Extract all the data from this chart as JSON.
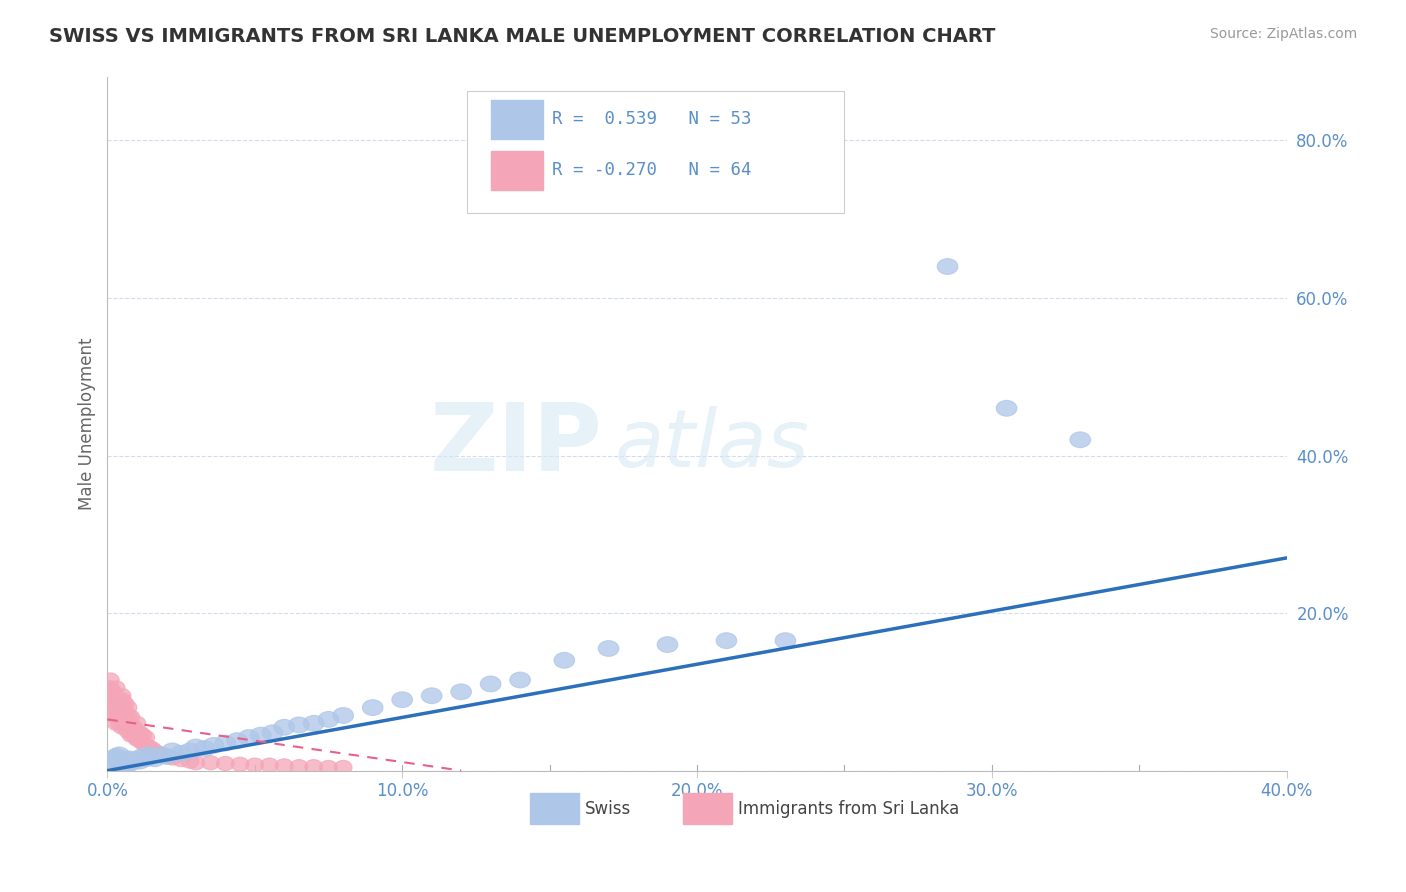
{
  "title": "SWISS VS IMMIGRANTS FROM SRI LANKA MALE UNEMPLOYMENT CORRELATION CHART",
  "source": "Source: ZipAtlas.com",
  "ylabel": "Male Unemployment",
  "xlim": [
    0.0,
    0.4
  ],
  "ylim": [
    0.0,
    0.88
  ],
  "legend1_label": "R =  0.539   N = 53",
  "legend2_label": "R = -0.270   N = 64",
  "series1_name": "Swiss",
  "series2_name": "Immigrants from Sri Lanka",
  "series1_color": "#aec6e8",
  "series2_color": "#f4a6b8",
  "trend1_color": "#2c6fba",
  "trend2_color": "#e8608a",
  "background_color": "#ffffff",
  "grid_color": "#c8d4e8",
  "watermark_zip": "ZIP",
  "watermark_atlas": "atlas",
  "tick_color": "#5a8fc8",
  "swiss_x": [
    0.001,
    0.002,
    0.003,
    0.003,
    0.004,
    0.004,
    0.005,
    0.005,
    0.006,
    0.006,
    0.007,
    0.007,
    0.008,
    0.009,
    0.01,
    0.011,
    0.012,
    0.013,
    0.014,
    0.015,
    0.016,
    0.018,
    0.02,
    0.022,
    0.025,
    0.028,
    0.03,
    0.033,
    0.036,
    0.04,
    0.044,
    0.048,
    0.052,
    0.056,
    0.06,
    0.065,
    0.07,
    0.075,
    0.08,
    0.09,
    0.1,
    0.11,
    0.12,
    0.13,
    0.14,
    0.155,
    0.17,
    0.19,
    0.21,
    0.23,
    0.285,
    0.305,
    0.33
  ],
  "swiss_y": [
    0.01,
    0.015,
    0.012,
    0.018,
    0.01,
    0.02,
    0.008,
    0.015,
    0.01,
    0.012,
    0.008,
    0.015,
    0.01,
    0.012,
    0.015,
    0.012,
    0.018,
    0.015,
    0.02,
    0.018,
    0.015,
    0.02,
    0.018,
    0.025,
    0.022,
    0.025,
    0.03,
    0.028,
    0.032,
    0.035,
    0.038,
    0.042,
    0.045,
    0.048,
    0.055,
    0.058,
    0.06,
    0.065,
    0.07,
    0.08,
    0.09,
    0.095,
    0.1,
    0.11,
    0.115,
    0.14,
    0.155,
    0.16,
    0.165,
    0.165,
    0.64,
    0.46,
    0.42
  ],
  "sri_x": [
    0.001,
    0.001,
    0.001,
    0.002,
    0.002,
    0.002,
    0.002,
    0.003,
    0.003,
    0.003,
    0.003,
    0.003,
    0.004,
    0.004,
    0.004,
    0.004,
    0.005,
    0.005,
    0.005,
    0.005,
    0.005,
    0.005,
    0.006,
    0.006,
    0.006,
    0.006,
    0.007,
    0.007,
    0.007,
    0.007,
    0.008,
    0.008,
    0.008,
    0.009,
    0.009,
    0.01,
    0.01,
    0.01,
    0.011,
    0.011,
    0.012,
    0.012,
    0.013,
    0.013,
    0.014,
    0.015,
    0.016,
    0.017,
    0.018,
    0.02,
    0.022,
    0.025,
    0.028,
    0.03,
    0.035,
    0.04,
    0.045,
    0.05,
    0.055,
    0.06,
    0.065,
    0.07,
    0.075,
    0.08
  ],
  "sri_y": [
    0.095,
    0.105,
    0.115,
    0.07,
    0.08,
    0.09,
    0.1,
    0.06,
    0.07,
    0.08,
    0.09,
    0.105,
    0.06,
    0.07,
    0.08,
    0.09,
    0.055,
    0.065,
    0.075,
    0.085,
    0.09,
    0.095,
    0.055,
    0.065,
    0.075,
    0.085,
    0.05,
    0.06,
    0.07,
    0.08,
    0.045,
    0.058,
    0.068,
    0.045,
    0.055,
    0.04,
    0.05,
    0.06,
    0.038,
    0.048,
    0.035,
    0.045,
    0.032,
    0.042,
    0.03,
    0.028,
    0.025,
    0.022,
    0.02,
    0.018,
    0.016,
    0.014,
    0.012,
    0.01,
    0.01,
    0.009,
    0.008,
    0.007,
    0.007,
    0.006,
    0.005,
    0.005,
    0.004,
    0.004
  ],
  "trend1_x": [
    0.0,
    0.4
  ],
  "trend1_y": [
    0.0,
    0.27
  ],
  "trend2_x": [
    0.0,
    0.12
  ],
  "trend2_y": [
    0.065,
    0.0
  ]
}
